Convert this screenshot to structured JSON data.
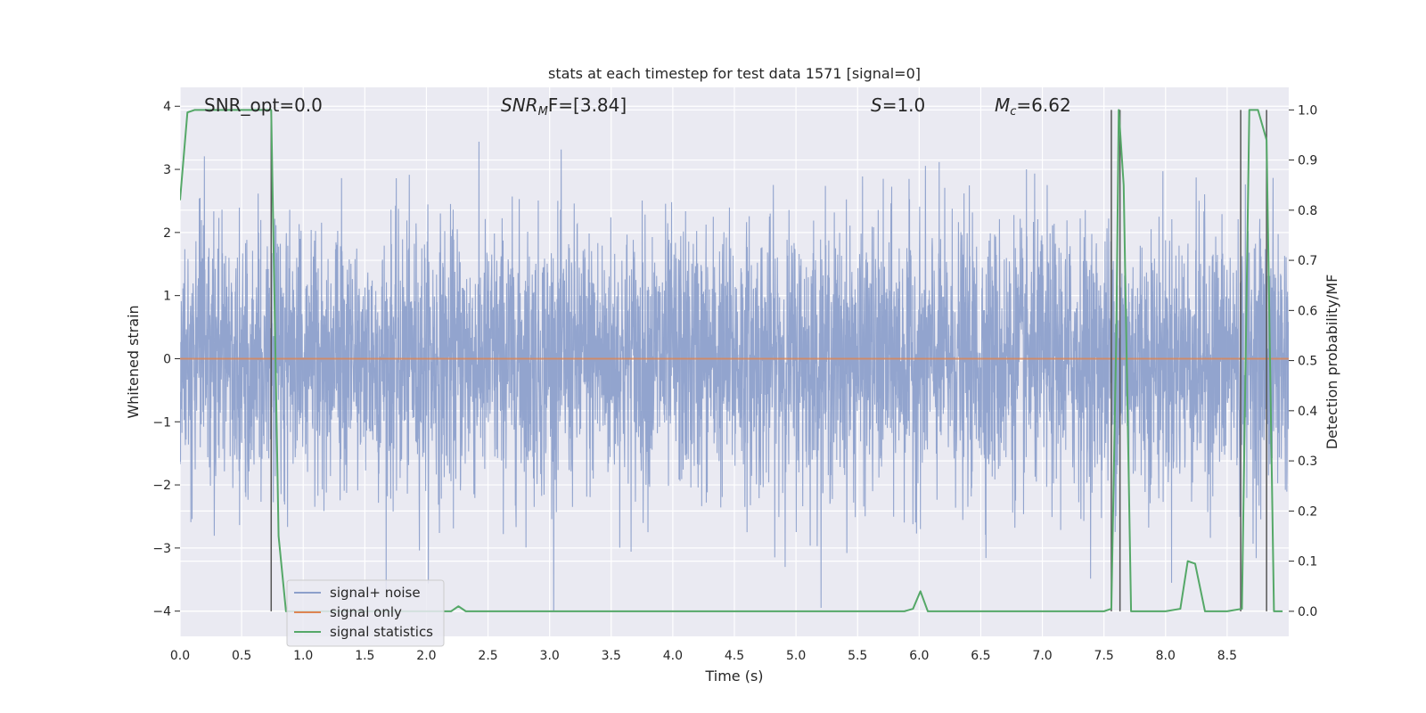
{
  "chart_data": {
    "type": "line",
    "title": "stats at each timestep for test data 1571 [signal=0]",
    "xlabel": "Time (s)",
    "ylabel_left": "Whitened strain",
    "ylabel_right": "Detection probability/MF",
    "xlim": [
      0,
      9.0
    ],
    "ylim_left": [
      -4.4,
      4.3
    ],
    "ylim_right": [
      -0.05,
      1.045
    ],
    "x_ticks": [
      0.0,
      0.5,
      1.0,
      1.5,
      2.0,
      2.5,
      3.0,
      3.5,
      4.0,
      4.5,
      5.0,
      5.5,
      6.0,
      6.5,
      7.0,
      7.5,
      8.0,
      8.5
    ],
    "x_tick_labels": [
      "0.0",
      "0.5",
      "1.0",
      "1.5",
      "2.0",
      "2.5",
      "3.0",
      "3.5",
      "4.0",
      "4.5",
      "5.0",
      "5.5",
      "6.0",
      "6.5",
      "7.0",
      "7.5",
      "8.0",
      "8.5"
    ],
    "y_left_ticks": [
      -4,
      -3,
      -2,
      -1,
      0,
      1,
      2,
      3,
      4
    ],
    "y_left_tick_labels": [
      "−4",
      "−3",
      "−2",
      "−1",
      "0",
      "1",
      "2",
      "3",
      "4"
    ],
    "y_right_ticks": [
      0.0,
      0.1,
      0.2,
      0.3,
      0.4,
      0.5,
      0.6,
      0.7,
      0.8,
      0.9,
      1.0
    ],
    "y_right_tick_labels": [
      "0.0",
      "0.1",
      "0.2",
      "0.3",
      "0.4",
      "0.5",
      "0.6",
      "0.7",
      "0.8",
      "0.9",
      "1.0"
    ],
    "annotations": {
      "snr_opt": "SNR_opt=0.0",
      "snr_mf_symbol": "SNR",
      "snr_mf_sub": "M",
      "snr_mf_rest": "F=[3.84]",
      "s_symbol": "S",
      "s_rest": "=1.0",
      "mc_symbol": "M",
      "mc_sub": "c",
      "mc_rest": "=6.62"
    },
    "grid": true,
    "legend_position": "lower-left",
    "series": [
      {
        "name": "signal+ noise",
        "axis": "left",
        "color": "#8da0cb",
        "description_of_values": "dense whitened noise, roughly Gaussian with unit variance",
        "approx_range": [
          -4.0,
          3.9
        ]
      },
      {
        "name": "signal only",
        "axis": "left",
        "color": "#dd8452",
        "x": [
          0.0,
          9.0
        ],
        "y": [
          0.0,
          0.0
        ]
      },
      {
        "name": "signal statistics",
        "axis": "right",
        "color": "#55a868",
        "x": [
          0.0,
          0.06,
          0.12,
          0.2,
          0.3,
          0.4,
          0.5,
          0.6,
          0.7,
          0.74,
          0.8,
          0.86,
          0.95,
          1.1,
          1.5,
          2.0,
          2.15,
          2.2,
          2.26,
          2.32,
          2.5,
          3.0,
          4.0,
          5.0,
          5.5,
          5.88,
          5.95,
          6.01,
          6.07,
          6.5,
          7.0,
          7.5,
          7.56,
          7.6,
          7.62,
          7.66,
          7.72,
          7.78,
          8.0,
          8.12,
          8.18,
          8.24,
          8.32,
          8.5,
          8.62,
          8.68,
          8.75,
          8.82,
          8.88,
          8.95
        ],
        "y": [
          0.82,
          0.995,
          1.0,
          1.0,
          1.0,
          1.0,
          1.0,
          1.0,
          1.0,
          1.0,
          0.15,
          0.0,
          0.0,
          0.0,
          0.0,
          0.0,
          0.0,
          0.0,
          0.01,
          0.0,
          0.0,
          0.0,
          0.0,
          0.0,
          0.0,
          0.0,
          0.005,
          0.04,
          0.0,
          0.0,
          0.0,
          0.0,
          0.005,
          0.55,
          1.0,
          0.85,
          0.0,
          0.0,
          0.0,
          0.005,
          0.1,
          0.095,
          0.0,
          0.0,
          0.005,
          1.0,
          1.0,
          0.94,
          0.0,
          0.0
        ]
      }
    ],
    "vertical_markers_x": [
      0.74,
      7.56,
      7.63,
      8.61,
      8.82
    ]
  }
}
